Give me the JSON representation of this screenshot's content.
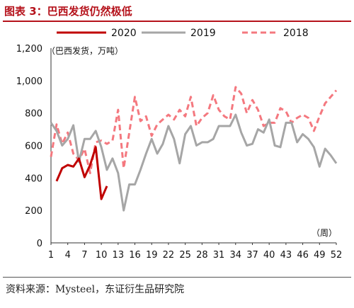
{
  "figure": {
    "title": "图表 3：巴西发货仍然极低",
    "source": "资料来源：Mysteel，东证衍生品研究院"
  },
  "chart_data": {
    "type": "line",
    "title": "",
    "unit_label": "（巴西发货，万吨）",
    "x_unit_label": "（周）",
    "xlabel": "",
    "ylabel": "",
    "ylim": [
      0,
      1200
    ],
    "xlim": [
      1,
      52
    ],
    "y_ticks": [
      0,
      200,
      400,
      600,
      800,
      1000,
      1200
    ],
    "y_tick_labels": [
      "0",
      "200",
      "400",
      "600",
      "800",
      "1,000",
      "1,200"
    ],
    "x_ticks": [
      1,
      4,
      7,
      10,
      13,
      16,
      19,
      22,
      25,
      28,
      31,
      34,
      37,
      40,
      43,
      46,
      49,
      52
    ],
    "grid": false,
    "legend_position": "top",
    "series": [
      {
        "name": "2020",
        "color": "#c00000",
        "style": "solid",
        "x": [
          2,
          3,
          4,
          5,
          6,
          7,
          8,
          9,
          10,
          11
        ],
        "y": [
          380,
          460,
          480,
          470,
          520,
          405,
          480,
          590,
          270,
          350
        ]
      },
      {
        "name": "2019",
        "color": "#a6a6a6",
        "style": "solid",
        "x": [
          1,
          2,
          3,
          4,
          5,
          6,
          7,
          8,
          9,
          10,
          11,
          12,
          13,
          14,
          15,
          16,
          17,
          18,
          19,
          20,
          21,
          22,
          23,
          24,
          25,
          26,
          27,
          28,
          29,
          30,
          31,
          32,
          33,
          34,
          35,
          36,
          37,
          38,
          39,
          40,
          41,
          42,
          43,
          44,
          45,
          46,
          47,
          48,
          49,
          50,
          51,
          52
        ],
        "y": [
          740,
          690,
          600,
          640,
          725,
          500,
          640,
          640,
          690,
          590,
          450,
          520,
          430,
          200,
          360,
          360,
          450,
          550,
          640,
          550,
          610,
          720,
          640,
          490,
          670,
          720,
          600,
          620,
          620,
          640,
          720,
          720,
          720,
          790,
          680,
          600,
          610,
          700,
          680,
          760,
          600,
          590,
          740,
          740,
          620,
          670,
          640,
          590,
          470,
          580,
          540,
          490
        ]
      },
      {
        "name": "2018",
        "color": "#f4787f",
        "style": "dashed",
        "x": [
          1,
          2,
          3,
          4,
          5,
          6,
          7,
          8,
          9,
          10,
          11,
          12,
          13,
          14,
          15,
          16,
          17,
          18,
          19,
          20,
          21,
          22,
          23,
          24,
          25,
          26,
          27,
          28,
          29,
          30,
          31,
          32,
          33,
          34,
          35,
          36,
          37,
          38,
          39,
          40,
          41,
          42,
          43,
          44,
          45,
          46,
          47,
          48,
          49,
          50,
          51,
          52
        ],
        "y": [
          530,
          730,
          610,
          680,
          550,
          510,
          580,
          430,
          620,
          630,
          610,
          630,
          820,
          460,
          680,
          900,
          750,
          780,
          660,
          730,
          760,
          790,
          760,
          820,
          780,
          900,
          720,
          770,
          800,
          910,
          820,
          780,
          760,
          960,
          920,
          800,
          880,
          820,
          720,
          740,
          740,
          830,
          810,
          740,
          770,
          790,
          770,
          690,
          780,
          860,
          900,
          940
        ]
      }
    ]
  }
}
